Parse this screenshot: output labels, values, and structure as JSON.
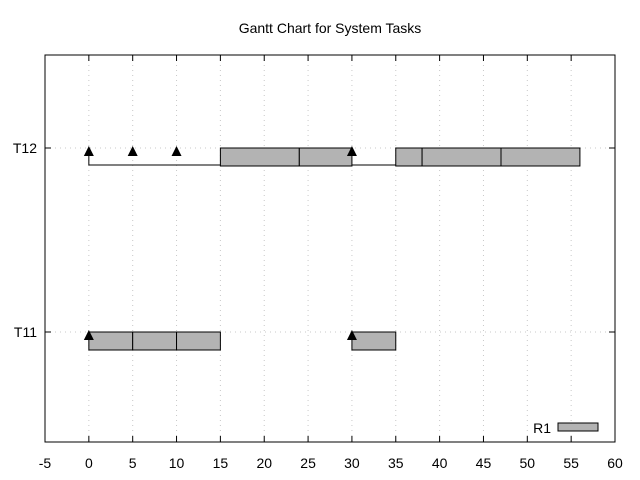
{
  "chart_data": {
    "type": "gantt",
    "title": "Gantt Chart for System Tasks",
    "xlabel": "",
    "ylabel": "",
    "xlim": [
      -5,
      60
    ],
    "xticks": [
      -5,
      0,
      5,
      10,
      15,
      20,
      25,
      30,
      35,
      40,
      45,
      50,
      55,
      60
    ],
    "grid": true,
    "tasks": [
      "T11",
      "T12"
    ],
    "series": [
      {
        "name": "R1",
        "color": "#b3b3b3",
        "segments": [
          {
            "task": "T11",
            "start": 0,
            "end": 5
          },
          {
            "task": "T11",
            "start": 5,
            "end": 10
          },
          {
            "task": "T11",
            "start": 10,
            "end": 15
          },
          {
            "task": "T11",
            "start": 30,
            "end": 35
          },
          {
            "task": "T12",
            "start": 15,
            "end": 24
          },
          {
            "task": "T12",
            "start": 24,
            "end": 30
          },
          {
            "task": "T12",
            "start": 35,
            "end": 38
          },
          {
            "task": "T12",
            "start": 38,
            "end": 47
          },
          {
            "task": "T12",
            "start": 47,
            "end": 56
          }
        ]
      }
    ],
    "timelines": [
      {
        "task": "T12",
        "start": 0,
        "end": 56
      }
    ],
    "releases": [
      {
        "task": "T11",
        "time": 0
      },
      {
        "task": "T11",
        "time": 30
      },
      {
        "task": "T12",
        "time": 0
      },
      {
        "task": "T12",
        "time": 5
      },
      {
        "task": "T12",
        "time": 10
      },
      {
        "task": "T12",
        "time": 30
      }
    ],
    "legend_position": "bottom-right"
  }
}
